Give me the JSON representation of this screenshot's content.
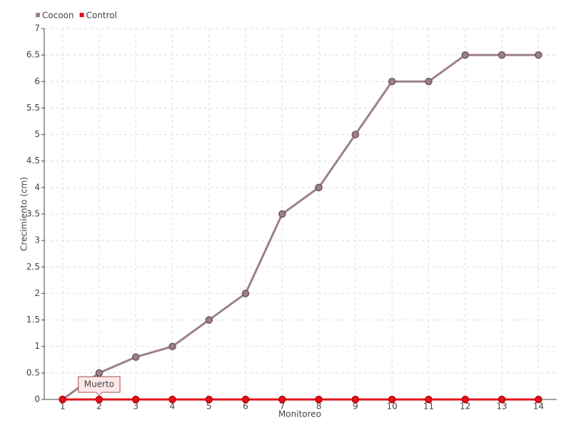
{
  "chart_data": {
    "type": "line",
    "y_label": "Crecimiento (cm)",
    "x_label": "Monitoreo",
    "categories": [
      "1",
      "2",
      "3",
      "4",
      "5",
      "6",
      "7",
      "8",
      "9",
      "10",
      "11",
      "12",
      "13",
      "14"
    ],
    "series": [
      {
        "name": "Cocoon",
        "color": "#9c8088",
        "values": [
          0,
          0.5,
          0.8,
          1,
          1.5,
          2,
          3.5,
          4,
          5,
          6,
          6,
          6.5,
          6.5,
          6.5
        ]
      },
      {
        "name": "Control",
        "color": "#e3121c",
        "values": [
          0,
          0,
          0,
          0,
          0,
          0,
          0,
          0,
          0,
          0,
          0,
          0,
          0,
          0
        ]
      }
    ],
    "ylim": [
      0,
      7
    ],
    "yticks": [
      0,
      0.5,
      1,
      1.5,
      2,
      2.5,
      3,
      3.5,
      4,
      4.5,
      5,
      5.5,
      6,
      6.5,
      7
    ],
    "grid": true,
    "legend": "top-left",
    "annotations": [
      {
        "text": "Muerto",
        "category": "2",
        "series": "Control"
      }
    ]
  }
}
